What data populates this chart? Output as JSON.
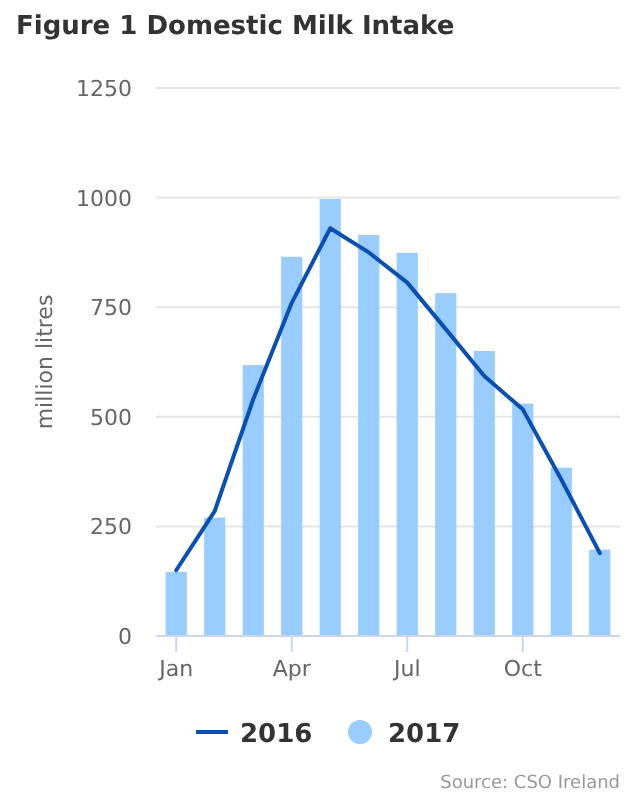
{
  "chart_data": {
    "type": "bar",
    "title": "Figure 1 Domestic Milk Intake",
    "ylabel": "million litres",
    "categories": [
      "Jan",
      null,
      null,
      "Apr",
      null,
      null,
      "Jul",
      null,
      null,
      "Oct",
      null,
      null
    ],
    "series": [
      {
        "name": "2016",
        "type": "line",
        "color": "#0a50b4",
        "values": [
          150,
          285,
          540,
          760,
          930,
          875,
          806,
          700,
          593,
          517,
          357,
          189
        ]
      },
      {
        "name": "2017",
        "color": "#99ccff",
        "values": [
          146,
          270,
          618,
          865,
          997,
          915,
          874,
          782,
          650,
          530,
          384,
          197
        ]
      }
    ],
    "ylim": [
      0,
      1250
    ],
    "yticks": [
      0,
      250,
      500,
      750,
      1000,
      1250
    ],
    "grid": "y",
    "legend": "bottom",
    "marker": "none",
    "line_style": "solid",
    "annotations": [
      "Source: CSO Ireland"
    ]
  }
}
